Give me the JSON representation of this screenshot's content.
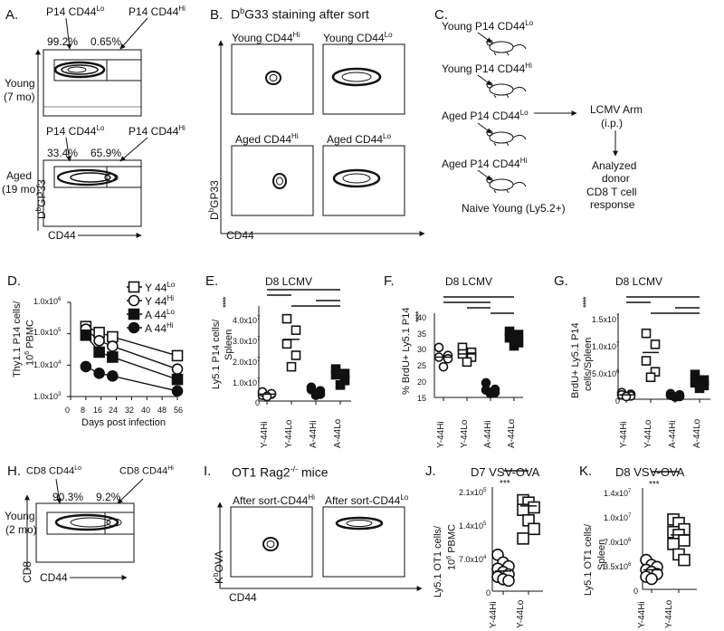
{
  "panel_letters": [
    "A.",
    "B.",
    "C.",
    "D.",
    "E.",
    "F.",
    "G.",
    "H.",
    "I.",
    "J.",
    "K."
  ],
  "A": {
    "gate_lo": "P14 CD44",
    "gate_lo_sup": "Lo",
    "gate_hi": "P14 CD44",
    "gate_hi_sup": "Hi",
    "young_pct_lo": "99.2%",
    "young_pct_hi": "0.65%",
    "aged_pct_lo": "33.4%",
    "aged_pct_hi": "65.9%",
    "young_label": "Young",
    "young_age": "(7 mo)",
    "aged_label": "Aged",
    "aged_age": "(19 mo)",
    "ylabel_sup": "b",
    "ylabel_pre": "D",
    "ylabel_post": "GP33",
    "xlabel": "CD44"
  },
  "B": {
    "title_pre": "D",
    "title_sup": "b",
    "title_post": "G33 staining after sort",
    "p1": "Young CD44",
    "p1_sup": "Hi",
    "p2": "Young CD44",
    "p2_sup": "Lo",
    "p3": "Aged CD44",
    "p3_sup": "Hi",
    "p4": "Aged CD44",
    "p4_sup": "Lo",
    "ylabel_pre": "D",
    "ylabel_sup": "b",
    "ylabel_post": "GP33",
    "xlabel": "CD44"
  },
  "C": {
    "donors": [
      {
        "text": "Young P14 CD44",
        "sup": "Lo"
      },
      {
        "text": "Young P14 CD44",
        "sup": "Hi"
      },
      {
        "text": "Aged P14 CD44",
        "sup": "Lo"
      },
      {
        "text": "Aged P14 CD44",
        "sup": "Hi"
      }
    ],
    "recipient": "Naive Young (Ly5.2+)",
    "infection": "LCMV Arm",
    "route": "(i.p.)",
    "outcome_1": "Analyzed",
    "outcome_2": "donor",
    "outcome_3": "CD8 T cell",
    "outcome_4": "response"
  },
  "D": {
    "ylabel_1": "Thy1.1 P14 cells/",
    "ylabel_2": "10",
    "ylabel_2_sup": "6",
    "ylabel_2_post": " PBMC",
    "xlabel": "Days post infection",
    "yticks": [
      "1.0x10",
      "1.0x10",
      "1.0x10",
      "1.0x10"
    ],
    "ytick_sups": [
      "6",
      "5",
      "4",
      "3"
    ],
    "xticks": [
      "0",
      "8",
      "16",
      "24",
      "32",
      "40",
      "48",
      "56"
    ],
    "legend": [
      {
        "name": "Y 44",
        "sup": "Lo"
      },
      {
        "name": "Y 44",
        "sup": "Hi"
      },
      {
        "name": "A 44",
        "sup": "Lo"
      },
      {
        "name": "A 44",
        "sup": "Hi"
      }
    ]
  },
  "E": {
    "title": "D8 LCMV",
    "ylabel_1": "Ly5.1 P14 cells/",
    "ylabel_2": "Spleen",
    "stars": "****",
    "yticks": [
      "4.0x10",
      "3.0x10",
      "2.0x10",
      "1.0x10",
      "0"
    ],
    "ytick_sup": "7",
    "cats": [
      "Y-44Hi",
      "Y-44Lo",
      "A-44Hi",
      "A-44Lo"
    ]
  },
  "F": {
    "title": "D8 LCMV",
    "ylabel": "% BrdU+ Ly5.1 P14",
    "stars": "****",
    "yticks": [
      "40",
      "35",
      "30",
      "25",
      "20",
      "15"
    ],
    "cats": [
      "Y-44Hi",
      "Y-44Lo",
      "A-44Hi",
      "A-44Lo"
    ]
  },
  "G": {
    "title": "D8 LCMV",
    "ylabel_1": "BrdU+ Ly5.1 P14",
    "ylabel_2": "cells/Spleen",
    "stars": "****",
    "yticks": [
      "1.5x10",
      "1.0x10",
      "5.0x10",
      "0"
    ],
    "ytick_sups": [
      "7",
      "7",
      "6",
      ""
    ],
    "cats": [
      "Y-44Hi",
      "Y-44Lo",
      "A-44Hi",
      "A-44Lo"
    ]
  },
  "H": {
    "gate_lo": "CD8 CD44",
    "gate_lo_sup": "Lo",
    "gate_hi": "CD8 CD44",
    "gate_hi_sup": "Hi",
    "pct_lo": "90.3%",
    "pct_hi": "9.2%",
    "row_label": "Young",
    "row_age": "(2 mo)",
    "ylabel": "CD8",
    "xlabel": "CD44"
  },
  "I": {
    "title_pre": "OT1 Rag2",
    "title_sup": "-/-",
    "title_post": " mice",
    "p1": "After sort-CD44",
    "p1_sup": "Hi",
    "p2": "After sort-CD44",
    "p2_sup": "Lo",
    "ylabel_pre": "K",
    "ylabel_sup": "b",
    "ylabel_post": "OVA",
    "xlabel": "CD44"
  },
  "J": {
    "title": "D7 VSV-OVA",
    "ylabel_1": "Ly5.1 OT1 cells/",
    "ylabel_2": "10",
    "ylabel_2_sup": "6",
    "ylabel_2_post": " PBMC",
    "stars": "***",
    "yticks": [
      "2.1x10",
      "1.4x10",
      "7.0x10",
      "0"
    ],
    "ytick_sups": [
      "5",
      "5",
      "4",
      ""
    ],
    "cats": [
      "Y-44Hi",
      "Y-44Lo"
    ]
  },
  "K": {
    "title": "D8 VSV-OVA",
    "ylabel_1": "Ly5.1 OT1 cells/",
    "ylabel_2": "Spleen",
    "stars": "***",
    "yticks": [
      "1.4x10",
      "1.0x10",
      "7.0x10",
      "3.5x10",
      "0"
    ],
    "ytick_sups": [
      "7",
      "7",
      "6",
      "6",
      ""
    ],
    "cats": [
      "Y-44Hi",
      "Y-44Lo"
    ]
  },
  "chart_data": [
    {
      "panel": "D",
      "type": "line",
      "xlabel": "Days post infection",
      "yscale": "log",
      "xlim": [
        0,
        56
      ],
      "ylim": [
        1000,
        1000000
      ],
      "x": [
        8,
        15,
        22,
        56
      ],
      "series": [
        {
          "name": "Y 44Lo",
          "marker": "open-square",
          "values": [
            170000,
            110000,
            80000,
            20000
          ]
        },
        {
          "name": "Y 44Hi",
          "marker": "open-circle",
          "values": [
            140000,
            60000,
            40000,
            7500
          ]
        },
        {
          "name": "A 44Lo",
          "marker": "filled-square",
          "values": [
            90000,
            26000,
            18000,
            3500
          ]
        },
        {
          "name": "A 44Hi",
          "marker": "filled-circle",
          "values": [
            9000,
            5500,
            4500,
            1500
          ]
        }
      ]
    },
    {
      "panel": "E",
      "type": "scatter",
      "title": "D8 LCMV",
      "ylim": [
        0,
        40000000
      ],
      "categories": [
        "Y-44Hi",
        "Y-44Lo",
        "A-44Hi",
        "A-44Lo"
      ],
      "markers": [
        "open-circle",
        "open-square",
        "filled-circle",
        "filled-square"
      ],
      "points": [
        [
          2500000,
          3000000,
          4000000,
          3200000,
          2000000
        ],
        [
          36000000,
          31000000,
          25000000,
          20000000,
          15000000
        ],
        [
          6000000,
          4500000,
          5000000,
          3000000,
          2500000
        ],
        [
          14000000,
          12000000,
          11500000,
          9000000,
          7000000
        ]
      ],
      "means": [
        3000000,
        27000000,
        4500000,
        11000000
      ]
    },
    {
      "panel": "F",
      "type": "scatter",
      "title": "D8 LCMV",
      "ylim": [
        15,
        40
      ],
      "categories": [
        "Y-44Hi",
        "Y-44Lo",
        "A-44Hi",
        "A-44Lo"
      ],
      "markers": [
        "open-circle",
        "open-square",
        "filled-circle",
        "filled-square"
      ],
      "points": [
        [
          30.5,
          28,
          27.5,
          27,
          24.5
        ],
        [
          30.5,
          29,
          28.5,
          27.5,
          26
        ],
        [
          19.5,
          17.5,
          17.3,
          16.5,
          16.2
        ],
        [
          35.5,
          34.5,
          33.5,
          32,
          31
        ]
      ],
      "means": [
        27.5,
        28.5,
        17.5,
        33.5
      ]
    },
    {
      "panel": "G",
      "type": "scatter",
      "title": "D8 LCMV",
      "ylim": [
        0,
        15000000
      ],
      "categories": [
        "Y-44Hi",
        "Y-44Lo",
        "A-44Hi",
        "A-44Lo"
      ],
      "markers": [
        "open-circle",
        "open-square",
        "filled-circle",
        "filled-square"
      ],
      "points": [
        [
          1200000,
          900000,
          800000,
          600000,
          500000
        ],
        [
          12000000,
          10000000,
          7000000,
          5000000,
          4000000
        ],
        [
          1000000,
          800000,
          700000,
          500000,
          400000
        ],
        [
          4500000,
          3500000,
          3000000,
          2500000,
          2000000
        ]
      ],
      "means": [
        800000,
        8500000,
        700000,
        3000000
      ]
    },
    {
      "panel": "J",
      "type": "scatter",
      "title": "D7 VSV-OVA",
      "ylim": [
        0,
        210000
      ],
      "categories": [
        "Y-44Hi",
        "Y-44Lo"
      ],
      "markers": [
        "open-circle",
        "open-square"
      ],
      "points": [
        [
          76000,
          60000,
          52000,
          47000,
          40000,
          35000,
          30000,
          25000,
          22000
        ],
        [
          190000,
          185000,
          175000,
          170000,
          148000,
          130000,
          110000
        ]
      ],
      "means": [
        42000,
        178000
      ]
    },
    {
      "panel": "K",
      "type": "scatter",
      "title": "D8 VSV-OVA",
      "ylim": [
        0,
        14000000
      ],
      "categories": [
        "Y-44Hi",
        "Y-44Lo"
      ],
      "markers": [
        "open-circle",
        "open-square"
      ],
      "points": [
        [
          4200000,
          3500000,
          3200000,
          2800000,
          2500000,
          2200000,
          1800000,
          1500000
        ],
        [
          10000000,
          9500000,
          8600000,
          8200000,
          7800000,
          7000000,
          6500000,
          5000000,
          4200000
        ]
      ],
      "means": [
        2800000,
        7800000
      ]
    }
  ]
}
